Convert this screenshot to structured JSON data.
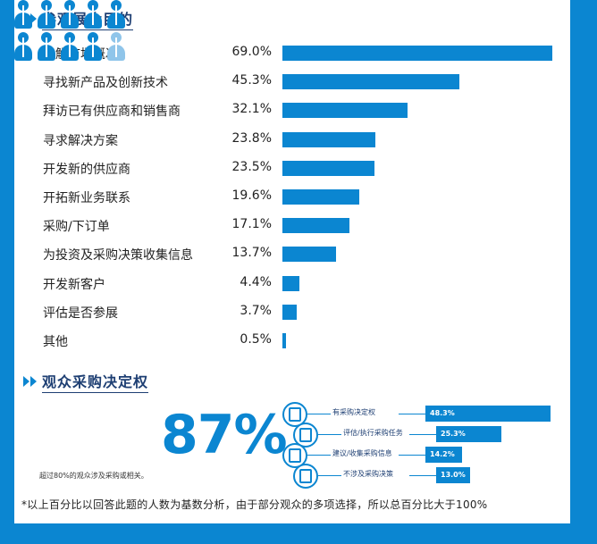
{
  "section1": {
    "title": "参观展会目的"
  },
  "chart_data": [
    {
      "type": "bar",
      "orientation": "horizontal",
      "categories": [
        "了解市场概况",
        "寻找新产品及创新技术",
        "拜访已有供应商和销售商",
        "寻求解决方案",
        "开发新的供应商",
        "开拓新业务联系",
        "采购/下订单",
        "为投资及采购决策收集信息",
        "开发新客户",
        "评估是否参展",
        "其他"
      ],
      "values": [
        69.0,
        45.3,
        32.1,
        23.8,
        23.5,
        19.6,
        17.1,
        13.7,
        4.4,
        3.7,
        0.5
      ],
      "value_labels": [
        "69.0%",
        "45.3%",
        "32.1%",
        "23.8%",
        "23.5%",
        "19.6%",
        "17.1%",
        "13.7%",
        "4.4%",
        "3.7%",
        "0.5%"
      ],
      "title": "参观展会目的",
      "xlim": [
        0,
        69.0
      ],
      "color": "#0b86d1"
    },
    {
      "type": "bar",
      "orientation": "horizontal",
      "categories": [
        "有采购决定权",
        "评估/执行采购任务",
        "建议/收集采购信息",
        "不涉及采购决策"
      ],
      "values": [
        48.3,
        25.3,
        14.2,
        13.0
      ],
      "value_labels": [
        "48.3%",
        "25.3%",
        "14.2%",
        "13.0%"
      ],
      "title": "观众采购决定权",
      "xlim": [
        0,
        48.3
      ],
      "color": "#0b86d1"
    }
  ],
  "section2": {
    "title": "观众采购决定权",
    "big_value": "87%",
    "people_caption": "超过80%的观众涉及采购或相关。"
  },
  "footnote": "*以上百分比以回答此题的人数为基数分析，由于部分观众的多项选择，所以总百分比大于100%",
  "colors": {
    "accent": "#0b86d1",
    "title": "#1e3f73",
    "light_person": "#8fc5ea"
  }
}
